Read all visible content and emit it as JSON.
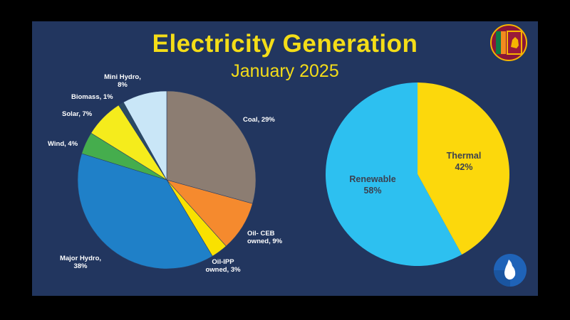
{
  "title": "Electricity Generation",
  "subtitle": "January 2025",
  "colors": {
    "background": "#22365f",
    "title": "#f4dd18"
  },
  "icons": [
    "sri-lanka-flag-icon",
    "sri-lanka-map-icon"
  ],
  "chart_data": [
    {
      "type": "pie",
      "title": "",
      "start_angle_deg": 0,
      "direction": "clockwise",
      "slices": [
        {
          "label_lines": [
            "Coal, 29%"
          ],
          "value": 29,
          "color": "#8c7d72"
        },
        {
          "label_lines": [
            "Oil- CEB",
            "owned, 9%"
          ],
          "value": 9,
          "color": "#f58a2e"
        },
        {
          "label_lines": [
            "Oil-IPP",
            "owned, 3%"
          ],
          "value": 3,
          "color": "#f9e100"
        },
        {
          "label_lines": [
            "Major Hydro,",
            "38%"
          ],
          "value": 38,
          "color": "#1f80c8"
        },
        {
          "label_lines": [
            "Wind, 4%"
          ],
          "value": 4,
          "color": "#45ad4d"
        },
        {
          "label_lines": [
            "Solar, 7%"
          ],
          "value": 7,
          "color": "#f5ec1c"
        },
        {
          "label_lines": [
            "Biomass, 1%"
          ],
          "value": 1,
          "color": "#2b4a63"
        },
        {
          "label_lines": [
            "Mini Hydro,",
            "8%"
          ],
          "value": 8,
          "color": "#c9e6f7"
        }
      ]
    },
    {
      "type": "pie",
      "title": "",
      "start_angle_deg": 0,
      "direction": "clockwise",
      "slices": [
        {
          "label_lines": [
            "Thermal",
            "42%"
          ],
          "value": 42,
          "color": "#fcd80c"
        },
        {
          "label_lines": [
            "Renewable",
            "58%"
          ],
          "value": 58,
          "color": "#2dc0f0"
        }
      ]
    }
  ]
}
